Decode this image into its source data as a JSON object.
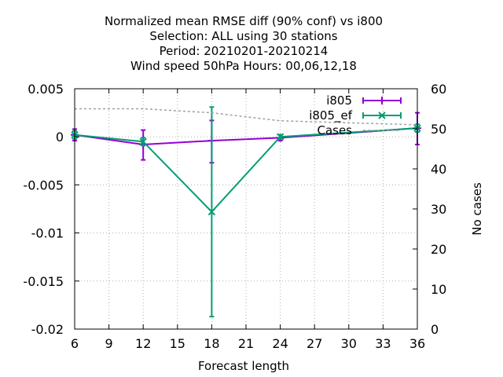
{
  "chart_data": {
    "type": "line",
    "title_lines": [
      "Normalized mean RMSE diff (90% conf) vs i800",
      "Selection: ALL using    30 stations",
      "Period: 20210201-20210214",
      "Wind speed 50hPa   Hours:  00,06,12,18"
    ],
    "xlabel": "Forecast length",
    "ylabel": "",
    "y2label": "No cases",
    "xlim": [
      6,
      36
    ],
    "ylim": [
      -0.02,
      0.005
    ],
    "y2lim": [
      0,
      60
    ],
    "xticks": [
      "6",
      "9",
      "12",
      "15",
      "18",
      "21",
      "24",
      "27",
      "30",
      "33",
      "36"
    ],
    "yticks": [
      "0.005",
      "0",
      "-0.005",
      "-0.01",
      "-0.015",
      "-0.02"
    ],
    "y2ticks": [
      "60",
      "50",
      "40",
      "30",
      "20",
      "10",
      "0"
    ],
    "grid": true,
    "legend_position": "top-right",
    "series": [
      {
        "name": "i805",
        "color": "#9400d3",
        "marker": "plus",
        "axis": "y",
        "x": [
          6,
          12,
          18,
          24,
          36
        ],
        "values": [
          0.0002,
          -0.0008,
          -0.0004,
          -0.0001,
          0.0009
        ],
        "err_low": [
          -0.0004,
          -0.0024,
          -0.0027,
          -0.0004,
          -0.0008
        ],
        "err_high": [
          0.0008,
          0.0007,
          0.0017,
          0.0002,
          0.0025
        ]
      },
      {
        "name": "i805_ef",
        "color": "#009e73",
        "marker": "cross",
        "axis": "y",
        "x": [
          6,
          12,
          18,
          24,
          36
        ],
        "values": [
          0.0002,
          -0.0005,
          -0.0078,
          0.0,
          0.0009
        ],
        "err_low": [
          -0.0002,
          -0.0009,
          -0.0187,
          -0.0002,
          0.0005
        ],
        "err_high": [
          0.0006,
          -0.0001,
          0.0031,
          0.0002,
          0.0013
        ]
      },
      {
        "name": "Cases",
        "color": "#a0a0a0",
        "marker": "none",
        "dashed": true,
        "axis": "y2",
        "x": [
          6,
          12,
          18,
          24,
          36
        ],
        "values": [
          55,
          55,
          54,
          52,
          51
        ]
      }
    ]
  }
}
